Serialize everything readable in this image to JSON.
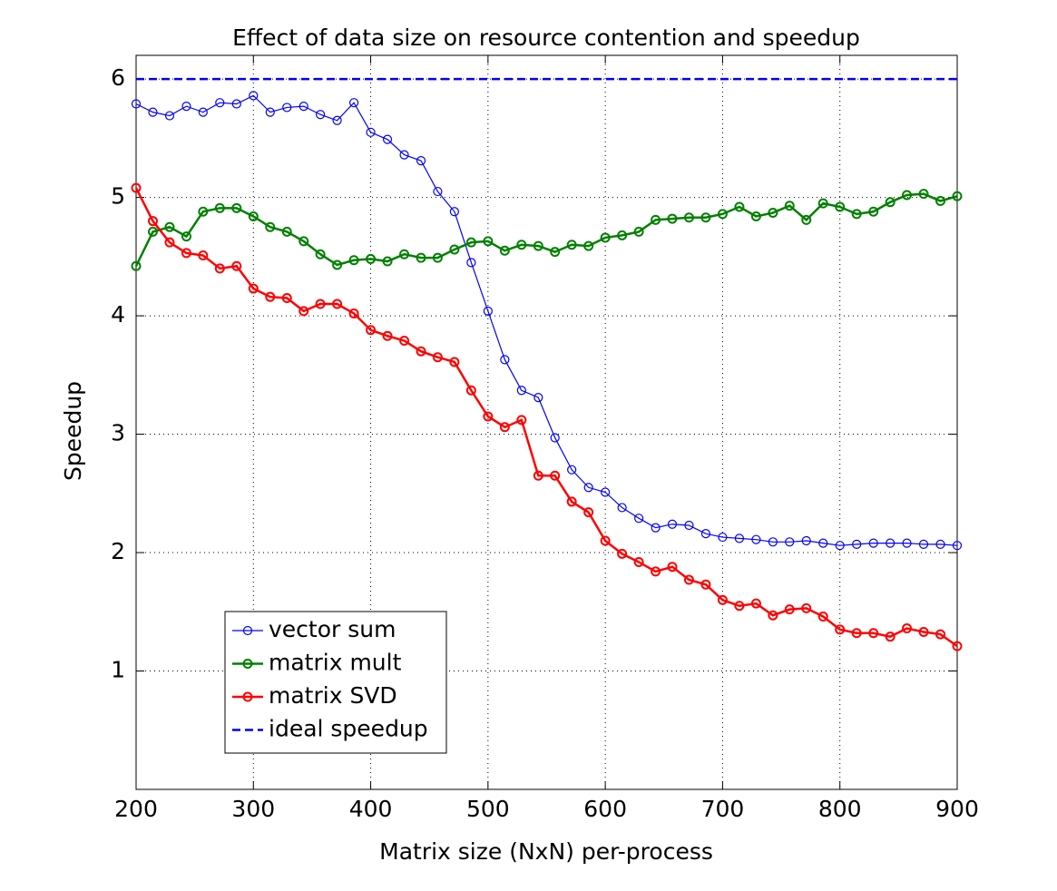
{
  "chart_data": {
    "type": "line",
    "title": "Effect of data size on resource contention and speedup",
    "xlabel": "Matrix size (NxN) per-process",
    "ylabel": "Speedup",
    "x": [
      200,
      214.3,
      228.6,
      242.9,
      257.1,
      271.4,
      285.7,
      300,
      314.3,
      328.6,
      342.9,
      357.1,
      371.4,
      385.7,
      400,
      414.3,
      428.6,
      442.9,
      457.1,
      471.4,
      485.7,
      500,
      514.3,
      528.6,
      542.9,
      557.1,
      571.4,
      585.7,
      600,
      614.3,
      628.6,
      642.9,
      657.1,
      671.4,
      685.7,
      700,
      714.3,
      728.6,
      742.9,
      757.1,
      771.4,
      785.7,
      800,
      814.3,
      828.6,
      842.9,
      857.1,
      871.4,
      885.7,
      900
    ],
    "series": [
      {
        "name": "vector sum",
        "color": "#0000ff",
        "marker": "o",
        "line_style": "solid",
        "line_width": 1.2,
        "values": [
          5.79,
          5.72,
          5.69,
          5.77,
          5.72,
          5.8,
          5.79,
          5.86,
          5.72,
          5.76,
          5.77,
          5.7,
          5.65,
          5.8,
          5.55,
          5.49,
          5.36,
          5.31,
          5.05,
          4.88,
          4.45,
          4.04,
          3.63,
          3.37,
          3.31,
          2.97,
          2.7,
          2.55,
          2.51,
          2.38,
          2.29,
          2.21,
          2.24,
          2.23,
          2.16,
          2.13,
          2.12,
          2.11,
          2.09,
          2.09,
          2.1,
          2.08,
          2.06,
          2.07,
          2.08,
          2.08,
          2.08,
          2.07,
          2.07,
          2.06
        ]
      },
      {
        "name": "matrix mult",
        "color": "#008000",
        "marker": "o",
        "line_style": "solid",
        "line_width": 2.5,
        "values": [
          4.42,
          4.71,
          4.75,
          4.67,
          4.88,
          4.91,
          4.91,
          4.84,
          4.75,
          4.71,
          4.63,
          4.52,
          4.43,
          4.47,
          4.48,
          4.46,
          4.52,
          4.49,
          4.49,
          4.56,
          4.62,
          4.63,
          4.55,
          4.6,
          4.59,
          4.54,
          4.6,
          4.59,
          4.66,
          4.68,
          4.71,
          4.81,
          4.82,
          4.83,
          4.83,
          4.86,
          4.92,
          4.84,
          4.87,
          4.93,
          4.81,
          4.95,
          4.92,
          4.86,
          4.88,
          4.96,
          5.02,
          5.03,
          4.97,
          5.01
        ]
      },
      {
        "name": "matrix SVD",
        "color": "#ff0000",
        "marker": "o",
        "line_style": "solid",
        "line_width": 2.5,
        "values": [
          5.08,
          4.8,
          4.62,
          4.53,
          4.51,
          4.4,
          4.42,
          4.23,
          4.16,
          4.15,
          4.04,
          4.1,
          4.1,
          4.02,
          3.88,
          3.83,
          3.79,
          3.7,
          3.65,
          3.61,
          3.37,
          3.15,
          3.06,
          3.12,
          2.65,
          2.65,
          2.43,
          2.34,
          2.1,
          1.99,
          1.92,
          1.84,
          1.88,
          1.77,
          1.73,
          1.6,
          1.55,
          1.57,
          1.47,
          1.52,
          1.53,
          1.46,
          1.35,
          1.32,
          1.32,
          1.29,
          1.36,
          1.33,
          1.31,
          1.21
        ]
      },
      {
        "name": "ideal speedup",
        "color": "#0000ff",
        "marker": null,
        "line_style": "dashed",
        "line_width": 2.5,
        "values": [
          6,
          6,
          6,
          6,
          6,
          6,
          6,
          6,
          6,
          6,
          6,
          6,
          6,
          6,
          6,
          6,
          6,
          6,
          6,
          6,
          6,
          6,
          6,
          6,
          6,
          6,
          6,
          6,
          6,
          6,
          6,
          6,
          6,
          6,
          6,
          6,
          6,
          6,
          6,
          6,
          6,
          6,
          6,
          6,
          6,
          6,
          6,
          6,
          6,
          6
        ]
      }
    ],
    "xlim": [
      200,
      900
    ],
    "xticks": [
      200,
      300,
      400,
      500,
      600,
      700,
      800,
      900
    ],
    "ylim": [
      0,
      6.2
    ],
    "yticks": [
      1,
      2,
      3,
      4,
      5,
      6
    ],
    "grid": true,
    "legend_position": "lower left"
  }
}
